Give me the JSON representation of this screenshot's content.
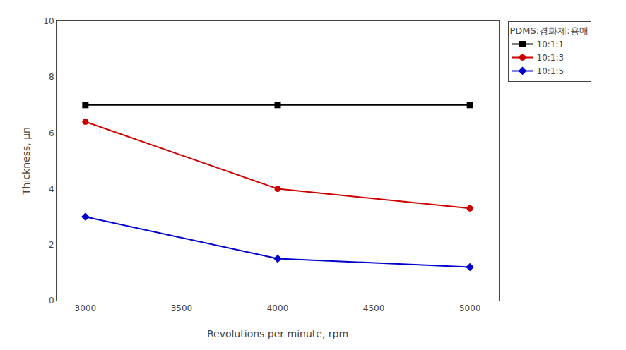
{
  "chart_data": {
    "type": "line",
    "xlabel": "Revolutions per minute, rpm",
    "ylabel": "Thickness, μn",
    "x": [
      3000,
      4000,
      5000
    ],
    "xlim": [
      2850,
      5150
    ],
    "ylim": [
      0,
      10
    ],
    "xticks": [
      3000,
      3500,
      4000,
      4500,
      5000
    ],
    "yticks": [
      0,
      2,
      4,
      6,
      8,
      10
    ],
    "series": [
      {
        "name": "10:1:1",
        "values": [
          7.0,
          7.0,
          7.0
        ],
        "color": "#000000",
        "marker": "square"
      },
      {
        "name": "10:1:3",
        "values": [
          6.4,
          4.0,
          3.3
        ],
        "color": "#cc0000",
        "marker": "circle"
      },
      {
        "name": "10:1:5",
        "values": [
          3.0,
          1.5,
          1.2
        ],
        "color": "#0000cc",
        "marker": "diamond"
      }
    ],
    "legend_title": "PDMS:경화제:용매",
    "legend": "right",
    "grid": false
  }
}
